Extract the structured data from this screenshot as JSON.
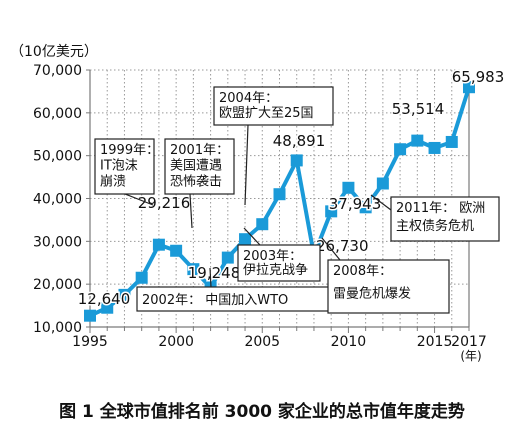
{
  "chart_data": {
    "type": "line",
    "unit_label": "（10亿美元）",
    "x_axis_unit": "(年)",
    "x_tick_labels": [
      "1995",
      "2000",
      "2005",
      "2010",
      "2015",
      "2017"
    ],
    "y_tick_labels": [
      "10,000",
      "20,000",
      "30,000",
      "40,000",
      "50,000",
      "60,000",
      "70,000"
    ],
    "ylim": [
      10000,
      70000
    ],
    "xlim": [
      1995,
      2017
    ],
    "grid": true,
    "series": [
      {
        "color": "#1a9ad8",
        "points": [
          {
            "x": 1995,
            "y": 12640
          },
          {
            "x": 1996,
            "y": 14500
          },
          {
            "x": 1997,
            "y": 17500
          },
          {
            "x": 1998,
            "y": 21500
          },
          {
            "x": 1999,
            "y": 29216
          },
          {
            "x": 2000,
            "y": 27800
          },
          {
            "x": 2001,
            "y": 23500
          },
          {
            "x": 2002,
            "y": 19248
          },
          {
            "x": 2003,
            "y": 26200
          },
          {
            "x": 2004,
            "y": 30500
          },
          {
            "x": 2005,
            "y": 34000
          },
          {
            "x": 2006,
            "y": 41000
          },
          {
            "x": 2007,
            "y": 48891
          },
          {
            "x": 2008,
            "y": 26730
          },
          {
            "x": 2009,
            "y": 37000
          },
          {
            "x": 2010,
            "y": 42500
          },
          {
            "x": 2011,
            "y": 37943
          },
          {
            "x": 2012,
            "y": 43500
          },
          {
            "x": 2013,
            "y": 51500
          },
          {
            "x": 2014,
            "y": 53514
          },
          {
            "x": 2015,
            "y": 51800
          },
          {
            "x": 2016,
            "y": 53200
          },
          {
            "x": 2017,
            "y": 65983
          }
        ]
      }
    ],
    "value_labels": [
      {
        "year": 1995,
        "text": "12,640"
      },
      {
        "year": 1999,
        "text": "29,216"
      },
      {
        "year": 2002,
        "text": "19,248"
      },
      {
        "year": 2007,
        "text": "48,891"
      },
      {
        "year": 2008,
        "text": "26,730"
      },
      {
        "year": 2011,
        "text": "37,943"
      },
      {
        "year": 2014,
        "text": "53,514"
      },
      {
        "year": 2017,
        "text": "65,983"
      }
    ],
    "annotations": [
      {
        "year": 1999,
        "lines": [
          "1999年：",
          "IT泡沫",
          "崩溃"
        ]
      },
      {
        "year": 2001,
        "lines": [
          "2001年：",
          "美国遭遇",
          "恐怖袭击"
        ]
      },
      {
        "year": 2002,
        "lines": [
          "2002年：  中国加入WTO"
        ]
      },
      {
        "year": 2003,
        "lines": [
          "2003年：",
          "伊拉克战争"
        ]
      },
      {
        "year": 2004,
        "lines": [
          "2004年：",
          "欧盟扩大至25国"
        ]
      },
      {
        "year": 2008,
        "lines": [
          "2008年：",
          "雷曼危机爆发"
        ]
      },
      {
        "year": 2011,
        "lines": [
          "2011年：  欧洲",
          "主权债务危机"
        ]
      }
    ]
  },
  "caption": "图 1    全球市值排名前 3000 家企业的总市值年度走势",
  "colors": {
    "background": "#ffffff",
    "plot_background": "#ffffff",
    "line": "#1a9ad8",
    "marker": "#1a9ad8",
    "grid": "#999999",
    "axis": "#7a7a7a",
    "callout_border": "#222222"
  }
}
